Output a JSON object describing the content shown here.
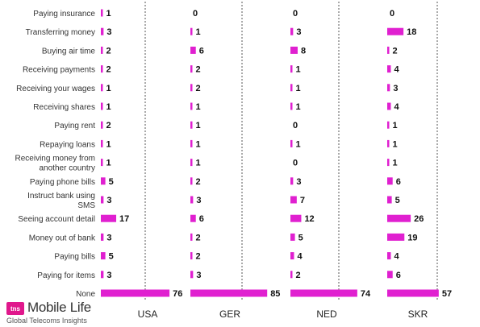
{
  "chart_data": {
    "type": "bar",
    "orientation": "horizontal",
    "categories": [
      "Paying insurance",
      "Transferring money",
      "Buying air time",
      "Receiving payments",
      "Receiving your wages",
      "Receiving shares",
      "Paying rent",
      "Repaying loans",
      "Receiving money from another country",
      "Paying phone bills",
      "Instruct bank using SMS",
      "Seeing account detail",
      "Money out of bank",
      "Paying bills",
      "Paying for items",
      "None"
    ],
    "series": [
      {
        "name": "USA",
        "values": [
          1,
          3,
          2,
          2,
          1,
          1,
          2,
          1,
          1,
          5,
          3,
          17,
          3,
          5,
          3,
          76
        ]
      },
      {
        "name": "GER",
        "values": [
          0,
          1,
          6,
          2,
          2,
          1,
          1,
          1,
          1,
          2,
          3,
          6,
          2,
          2,
          3,
          85
        ]
      },
      {
        "name": "NED",
        "values": [
          0,
          3,
          8,
          1,
          1,
          1,
          0,
          1,
          0,
          3,
          7,
          12,
          5,
          4,
          2,
          74
        ]
      },
      {
        "name": "SKR",
        "values": [
          0,
          18,
          2,
          4,
          3,
          4,
          1,
          1,
          1,
          6,
          5,
          26,
          19,
          4,
          6,
          57
        ]
      }
    ],
    "bar_color": "#e020d0",
    "grid": false,
    "legend": "none"
  },
  "logo": {
    "badge": "tns",
    "name": "Mobile Life",
    "tagline": "Global Telecoms Insights"
  }
}
